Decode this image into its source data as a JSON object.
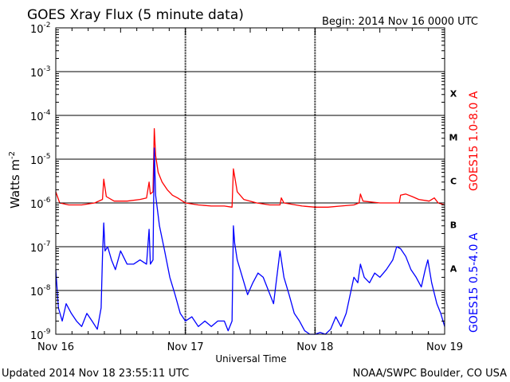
{
  "chart_data": {
    "type": "line",
    "title": "GOES Xray Flux (5 minute data)",
    "begin_label": "Begin:  2014 Nov 16 0000 UTC",
    "xlabel": "Universal Time",
    "ylabel": "Watts m",
    "ylabel_sup": "-2",
    "y_scale": "log",
    "ylim": [
      1e-09,
      0.01
    ],
    "xlim_days": [
      0,
      3
    ],
    "grid": true,
    "x_ticks": [
      {
        "day": 0,
        "label": "Nov 16"
      },
      {
        "day": 1,
        "label": "Nov 17"
      },
      {
        "day": 2,
        "label": "Nov 18"
      },
      {
        "day": 3,
        "label": "Nov 19"
      }
    ],
    "y_ticks": [
      {
        "base": "10",
        "exp": "-9"
      },
      {
        "base": "10",
        "exp": "-8"
      },
      {
        "base": "10",
        "exp": "-7"
      },
      {
        "base": "10",
        "exp": "-6"
      },
      {
        "base": "10",
        "exp": "-5"
      },
      {
        "base": "10",
        "exp": "-4"
      },
      {
        "base": "10",
        "exp": "-3"
      },
      {
        "base": "10",
        "exp": "-2"
      }
    ],
    "flare_classes": [
      {
        "label": "A",
        "exp": -8
      },
      {
        "label": "B",
        "exp": -7
      },
      {
        "label": "C",
        "exp": -6
      },
      {
        "label": "M",
        "exp": -5
      },
      {
        "label": "X",
        "exp": -4
      }
    ],
    "series": [
      {
        "name": "GOES15 1.0-8.0 A",
        "color": "#ff0000",
        "points": [
          [
            0.0,
            1.8e-06
          ],
          [
            0.03,
            1e-06
          ],
          [
            0.1,
            9e-07
          ],
          [
            0.2,
            9e-07
          ],
          [
            0.3,
            1e-06
          ],
          [
            0.36,
            1.2e-06
          ],
          [
            0.37,
            3.5e-06
          ],
          [
            0.39,
            1.4e-06
          ],
          [
            0.45,
            1.1e-06
          ],
          [
            0.55,
            1.1e-06
          ],
          [
            0.65,
            1.2e-06
          ],
          [
            0.7,
            1.3e-06
          ],
          [
            0.72,
            3e-06
          ],
          [
            0.73,
            1.6e-06
          ],
          [
            0.75,
            1.8e-06
          ],
          [
            0.76,
            5e-05
          ],
          [
            0.77,
            1.2e-05
          ],
          [
            0.79,
            5e-06
          ],
          [
            0.82,
            3e-06
          ],
          [
            0.86,
            2e-06
          ],
          [
            0.9,
            1.5e-06
          ],
          [
            0.94,
            1.3e-06
          ],
          [
            1.0,
            1e-06
          ],
          [
            1.1,
            9e-07
          ],
          [
            1.2,
            8.5e-07
          ],
          [
            1.3,
            8.5e-07
          ],
          [
            1.36,
            8e-07
          ],
          [
            1.37,
            6e-06
          ],
          [
            1.38,
            4e-06
          ],
          [
            1.4,
            1.8e-06
          ],
          [
            1.45,
            1.2e-06
          ],
          [
            1.55,
            1e-06
          ],
          [
            1.65,
            9e-07
          ],
          [
            1.73,
            9e-07
          ],
          [
            1.74,
            1.3e-06
          ],
          [
            1.76,
            1e-06
          ],
          [
            1.9,
            8.5e-07
          ],
          [
            2.0,
            8e-07
          ],
          [
            2.1,
            8e-07
          ],
          [
            2.2,
            8.5e-07
          ],
          [
            2.3,
            9e-07
          ],
          [
            2.34,
            1e-06
          ],
          [
            2.35,
            1.6e-06
          ],
          [
            2.37,
            1.1e-06
          ],
          [
            2.5,
            1e-06
          ],
          [
            2.6,
            1e-06
          ],
          [
            2.65,
            1e-06
          ],
          [
            2.66,
            1.5e-06
          ],
          [
            2.7,
            1.6e-06
          ],
          [
            2.75,
            1.4e-06
          ],
          [
            2.8,
            1.2e-06
          ],
          [
            2.88,
            1.1e-06
          ],
          [
            2.92,
            1.3e-06
          ],
          [
            2.95,
            1e-06
          ],
          [
            3.0,
            9e-07
          ]
        ]
      },
      {
        "name": "GOES15 0.5-4.0 A",
        "color": "#0000ff",
        "points": [
          [
            0.0,
            3e-08
          ],
          [
            0.02,
            4e-09
          ],
          [
            0.05,
            2e-09
          ],
          [
            0.08,
            5e-09
          ],
          [
            0.12,
            3e-09
          ],
          [
            0.16,
            2e-09
          ],
          [
            0.2,
            1.5e-09
          ],
          [
            0.24,
            3e-09
          ],
          [
            0.28,
            2e-09
          ],
          [
            0.32,
            1.3e-09
          ],
          [
            0.35,
            4e-09
          ],
          [
            0.36,
            6e-08
          ],
          [
            0.37,
            3.5e-07
          ],
          [
            0.38,
            8e-08
          ],
          [
            0.4,
            1e-07
          ],
          [
            0.43,
            5e-08
          ],
          [
            0.46,
            3e-08
          ],
          [
            0.5,
            8e-08
          ],
          [
            0.55,
            4e-08
          ],
          [
            0.6,
            4e-08
          ],
          [
            0.65,
            5e-08
          ],
          [
            0.7,
            4e-08
          ],
          [
            0.72,
            2.5e-07
          ],
          [
            0.73,
            4e-08
          ],
          [
            0.75,
            5e-08
          ],
          [
            0.76,
            1.8e-05
          ],
          [
            0.77,
            1.5e-06
          ],
          [
            0.8,
            3e-07
          ],
          [
            0.84,
            8e-08
          ],
          [
            0.88,
            2e-08
          ],
          [
            0.92,
            8e-09
          ],
          [
            0.96,
            3e-09
          ],
          [
            1.0,
            2e-09
          ],
          [
            1.05,
            2.5e-09
          ],
          [
            1.1,
            1.5e-09
          ],
          [
            1.15,
            2e-09
          ],
          [
            1.2,
            1.5e-09
          ],
          [
            1.25,
            2e-09
          ],
          [
            1.3,
            2e-09
          ],
          [
            1.33,
            1.2e-09
          ],
          [
            1.36,
            2e-09
          ],
          [
            1.37,
            3e-07
          ],
          [
            1.38,
            1.2e-07
          ],
          [
            1.4,
            5e-08
          ],
          [
            1.44,
            2e-08
          ],
          [
            1.48,
            8e-09
          ],
          [
            1.52,
            1.5e-08
          ],
          [
            1.56,
            2.5e-08
          ],
          [
            1.6,
            2e-08
          ],
          [
            1.64,
            1e-08
          ],
          [
            1.68,
            5e-09
          ],
          [
            1.73,
            8e-08
          ],
          [
            1.76,
            2e-08
          ],
          [
            1.8,
            8e-09
          ],
          [
            1.84,
            3e-09
          ],
          [
            1.88,
            2e-09
          ],
          [
            1.92,
            1.2e-09
          ],
          [
            1.96,
            1e-09
          ],
          [
            2.0,
            1e-09
          ],
          [
            2.04,
            1.1e-09
          ],
          [
            2.08,
            1e-09
          ],
          [
            2.12,
            1.3e-09
          ],
          [
            2.16,
            2.5e-09
          ],
          [
            2.2,
            1.5e-09
          ],
          [
            2.24,
            3e-09
          ],
          [
            2.3,
            2e-08
          ],
          [
            2.33,
            1.5e-08
          ],
          [
            2.35,
            4e-08
          ],
          [
            2.38,
            2e-08
          ],
          [
            2.42,
            1.5e-08
          ],
          [
            2.46,
            2.5e-08
          ],
          [
            2.5,
            2e-08
          ],
          [
            2.55,
            3e-08
          ],
          [
            2.6,
            5e-08
          ],
          [
            2.63,
            1e-07
          ],
          [
            2.66,
            9e-08
          ],
          [
            2.7,
            6e-08
          ],
          [
            2.74,
            3e-08
          ],
          [
            2.78,
            2e-08
          ],
          [
            2.82,
            1.2e-08
          ],
          [
            2.85,
            3e-08
          ],
          [
            2.87,
            5e-08
          ],
          [
            2.9,
            1.5e-08
          ],
          [
            2.94,
            5e-09
          ],
          [
            2.97,
            3e-09
          ],
          [
            3.0,
            1.5e-09
          ]
        ]
      }
    ]
  },
  "footer": {
    "updated": "Updated 2014 Nov 18 23:55:11 UTC",
    "credit": "NOAA/SWPC Boulder, CO USA"
  }
}
